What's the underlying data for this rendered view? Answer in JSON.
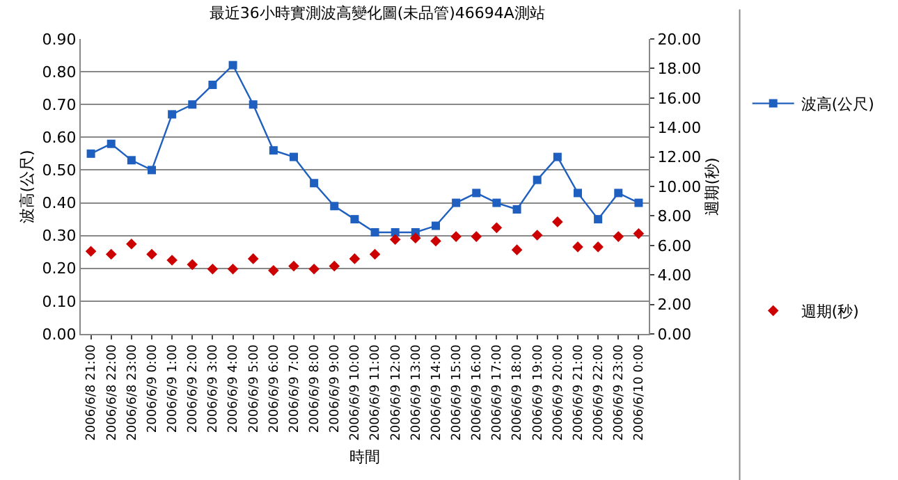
{
  "chart_data": {
    "type": "line",
    "title": "最近36小時實測波高變化圖(未品管)46694A測站",
    "xlabel": "時間",
    "ylabel": "波高(公尺)",
    "y2label": "週期(秒)",
    "categories": [
      "2006/6/8 21:00",
      "2006/6/8 22:00",
      "2006/6/8 23:00",
      "2006/6/9 0:00",
      "2006/6/9 1:00",
      "2006/6/9 2:00",
      "2006/6/9 3:00",
      "2006/6/9 4:00",
      "2006/6/9 5:00",
      "2006/6/9 6:00",
      "2006/6/9 7:00",
      "2006/6/9 8:00",
      "2006/6/9 9:00",
      "2006/6/9 10:00",
      "2006/6/9 11:00",
      "2006/6/9 12:00",
      "2006/6/9 13:00",
      "2006/6/9 14:00",
      "2006/6/9 15:00",
      "2006/6/9 16:00",
      "2006/6/9 17:00",
      "2006/6/9 18:00",
      "2006/6/9 19:00",
      "2006/6/9 20:00",
      "2006/6/9 21:00",
      "2006/6/9 22:00",
      "2006/6/9 23:00",
      "2006/6/10 0:00"
    ],
    "series": [
      {
        "name": "波高(公尺)",
        "marker": "square",
        "color": "#1f5fbf",
        "values": [
          0.55,
          0.58,
          0.53,
          0.5,
          0.67,
          0.7,
          0.76,
          0.82,
          0.7,
          0.56,
          0.54,
          0.46,
          0.39,
          0.35,
          0.31,
          0.31,
          0.31,
          0.33,
          0.4,
          0.43,
          0.4,
          0.38,
          0.47,
          0.54,
          0.43,
          0.35,
          0.43,
          0.4
        ]
      },
      {
        "name": "週期(秒)",
        "type": "scatter",
        "marker": "diamond",
        "axis": "y2",
        "color": "#cc0000",
        "values": [
          5.6,
          5.4,
          6.1,
          5.4,
          5.0,
          4.7,
          4.4,
          4.4,
          5.1,
          4.3,
          4.6,
          4.4,
          4.6,
          5.1,
          5.4,
          6.4,
          6.5,
          6.3,
          6.6,
          6.6,
          7.2,
          5.7,
          6.7,
          7.6,
          5.9,
          5.9,
          6.6,
          6.8
        ]
      }
    ],
    "ylim": [
      0,
      0.9
    ],
    "yticks": [
      {
        "value": 0,
        "label": "0.00"
      },
      {
        "value": 0.1,
        "label": "0.10"
      },
      {
        "value": 0.2,
        "label": "0.20"
      },
      {
        "value": 0.3,
        "label": "0.30"
      },
      {
        "value": 0.4,
        "label": "0.40"
      },
      {
        "value": 0.5,
        "label": "0.50"
      },
      {
        "value": 0.6,
        "label": "0.60"
      },
      {
        "value": 0.7,
        "label": "0.70"
      },
      {
        "value": 0.8,
        "label": "0.80"
      },
      {
        "value": 0.9,
        "label": "0.90"
      }
    ],
    "y2lim": [
      0,
      20
    ],
    "y2ticks": [
      {
        "value": 0,
        "label": "0.00"
      },
      {
        "value": 2,
        "label": "2.00"
      },
      {
        "value": 4,
        "label": "4.00"
      },
      {
        "value": 6,
        "label": "6.00"
      },
      {
        "value": 8,
        "label": "8.00"
      },
      {
        "value": 10,
        "label": "10.00"
      },
      {
        "value": 12,
        "label": "12.00"
      },
      {
        "value": 14,
        "label": "14.00"
      },
      {
        "value": 16,
        "label": "16.00"
      },
      {
        "value": 18,
        "label": "18.00"
      },
      {
        "value": 20,
        "label": "20.00"
      }
    ],
    "grid": "y",
    "legend": "right",
    "line_style": "solid"
  }
}
